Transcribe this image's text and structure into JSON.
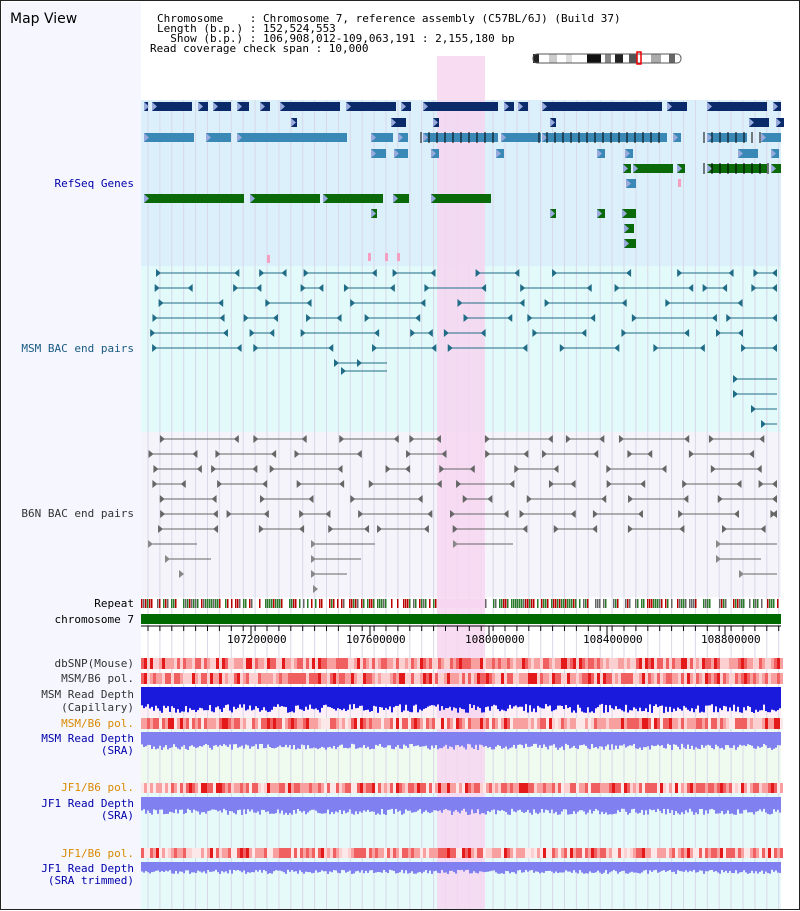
{
  "header": {
    "title": "Map View",
    "chromosome_line": "Chromosome    : Chromosome 7, reference assembly (C57BL/6J) (Build 37)",
    "length_line": "Length (b.p.) : 152,524,553",
    "show_line": "  Show (b.p.) : 106,908,012-109,063,191 : 2,155,180 bp",
    "span_line": "Read coverage check span : 10,000"
  },
  "tracks": {
    "refseq": "RefSeq Genes",
    "msm_bac": "MSM BAC end pairs",
    "b6n_bac": "B6N BAC end pairs",
    "repeat": "Repeat",
    "chromosome": "chromosome 7",
    "dbsnp": "dbSNP(Mouse)",
    "msm_pol": "MSM/B6 pol.",
    "msm_depth_cap_1": "MSM Read Depth",
    "msm_depth_cap_2": "(Capillary)",
    "msm_pol_sra": "MSM/B6 pol.",
    "msm_depth_sra_1": "MSM Read Depth",
    "msm_depth_sra_2": "(SRA)",
    "jf1_pol": "JF1/B6 pol.",
    "jf1_depth_1": "JF1 Read Depth",
    "jf1_depth_2": "(SRA)",
    "jf1_pol_trim": "JF1/B6 pol.",
    "jf1_trim_1": "JF1 Read Depth",
    "jf1_trim_2": "(SRA trimmed)"
  },
  "axis": {
    "ticks": [
      "107200000",
      "107600000",
      "108000000",
      "108400000",
      "108800000"
    ]
  },
  "colors": {
    "refseq_bg": "#dcf0fb",
    "msm_bg": "#e2fafa",
    "b6n_bg": "#f4f4fa",
    "highlight": "#f6d6f0",
    "gene_dark": "#0a2a6a",
    "gene_mid": "#3a88b6",
    "gene_green": "#0a6a0a",
    "chromosome_green": "#006a00",
    "depth_blue": "#1a1adc",
    "depth_violet": "#8080f0"
  }
}
